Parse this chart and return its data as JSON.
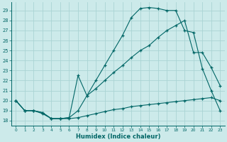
{
  "xlabel": "Humidex (Indice chaleur)",
  "xlim": [
    -0.5,
    23.5
  ],
  "ylim": [
    17.5,
    29.8
  ],
  "yticks": [
    18,
    19,
    20,
    21,
    22,
    23,
    24,
    25,
    26,
    27,
    28,
    29
  ],
  "xticks": [
    0,
    1,
    2,
    3,
    4,
    5,
    6,
    7,
    8,
    9,
    10,
    11,
    12,
    13,
    14,
    15,
    16,
    17,
    18,
    19,
    20,
    21,
    22,
    23
  ],
  "bg_color": "#cceaea",
  "grid_color": "#aad4d4",
  "line_color": "#006666",
  "line1_x": [
    0,
    1,
    2,
    3,
    4,
    5,
    6,
    7,
    8,
    9,
    10,
    11,
    12,
    13,
    14,
    15,
    16,
    17,
    18,
    19,
    20,
    21,
    22,
    23
  ],
  "line1_y": [
    20,
    19,
    19,
    18.7,
    18.2,
    18.2,
    18.2,
    18.3,
    18.5,
    18.7,
    18.9,
    19.1,
    19.2,
    19.4,
    19.5,
    19.6,
    19.7,
    19.8,
    19.9,
    20.0,
    20.1,
    20.2,
    20.3,
    20.0
  ],
  "line2_x": [
    0,
    1,
    2,
    3,
    4,
    5,
    6,
    7,
    8,
    9,
    10,
    11,
    12,
    13,
    14,
    15,
    16,
    17,
    18,
    19,
    20,
    21,
    22,
    23
  ],
  "line2_y": [
    20,
    19,
    19,
    18.8,
    18.2,
    18.2,
    18.3,
    22.5,
    20.5,
    22.0,
    23.5,
    25.0,
    26.5,
    28.3,
    29.2,
    29.3,
    29.2,
    29.0,
    29.0,
    27.0,
    26.8,
    23.2,
    21.0,
    19.0
  ],
  "line3_x": [
    0,
    1,
    2,
    3,
    4,
    5,
    6,
    7,
    8,
    9,
    10,
    11,
    12,
    13,
    14,
    15,
    16,
    17,
    18,
    19,
    20,
    21,
    22,
    23
  ],
  "line3_y": [
    20,
    19,
    19,
    18.8,
    18.2,
    18.2,
    18.3,
    19.0,
    20.5,
    21.2,
    22.0,
    22.8,
    23.5,
    24.3,
    25.0,
    25.5,
    26.3,
    27.0,
    27.5,
    28.0,
    24.8,
    24.8,
    23.3,
    21.5
  ]
}
